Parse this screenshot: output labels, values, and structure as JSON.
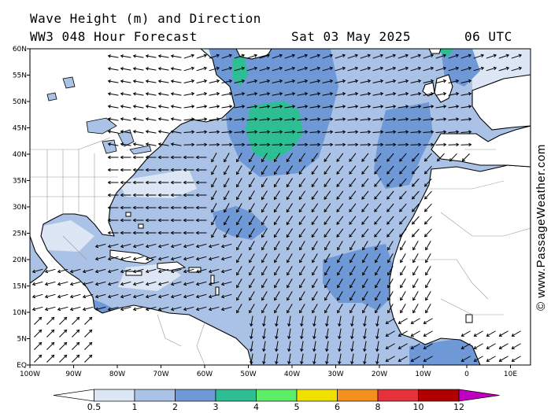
{
  "header": {
    "title": "Wave Height (m) and Direction",
    "subtitle": "WW3 048 Hour Forecast",
    "datetime": "Sat 03 May 2025",
    "hour": "06 UTC"
  },
  "axes": {
    "lat_labels": [
      "60N",
      "55N",
      "50N",
      "45N",
      "40N",
      "35N",
      "30N",
      "25N",
      "20N",
      "15N",
      "10N",
      "5N",
      "EQ"
    ],
    "lon_labels": [
      "100W",
      "90W",
      "80W",
      "70W",
      "60W",
      "50W",
      "40W",
      "30W",
      "20W",
      "10W",
      "0",
      "10E"
    ]
  },
  "copyright": "© www.PassageWeather.com",
  "legend": {
    "labels": [
      "0.5",
      "1",
      "2",
      "3",
      "4",
      "5",
      "6",
      "8",
      "10",
      "12"
    ],
    "colors": [
      "#ffffff",
      "#dce6f4",
      "#a9c2e6",
      "#6f98d6",
      "#2dbf93",
      "#5ded67",
      "#f0e000",
      "#f39020",
      "#e6303c",
      "#b00000",
      "#c000c0"
    ]
  },
  "map_colors": {
    "ocean_light": "#dce6f4",
    "ocean_mid": "#a9c2e6",
    "ocean_dark": "#6f98d6",
    "ocean_teal": "#2dbf93",
    "land": "#ffffff"
  },
  "map_description": {
    "arrow_field": "wave direction arrows across the North Atlantic"
  }
}
